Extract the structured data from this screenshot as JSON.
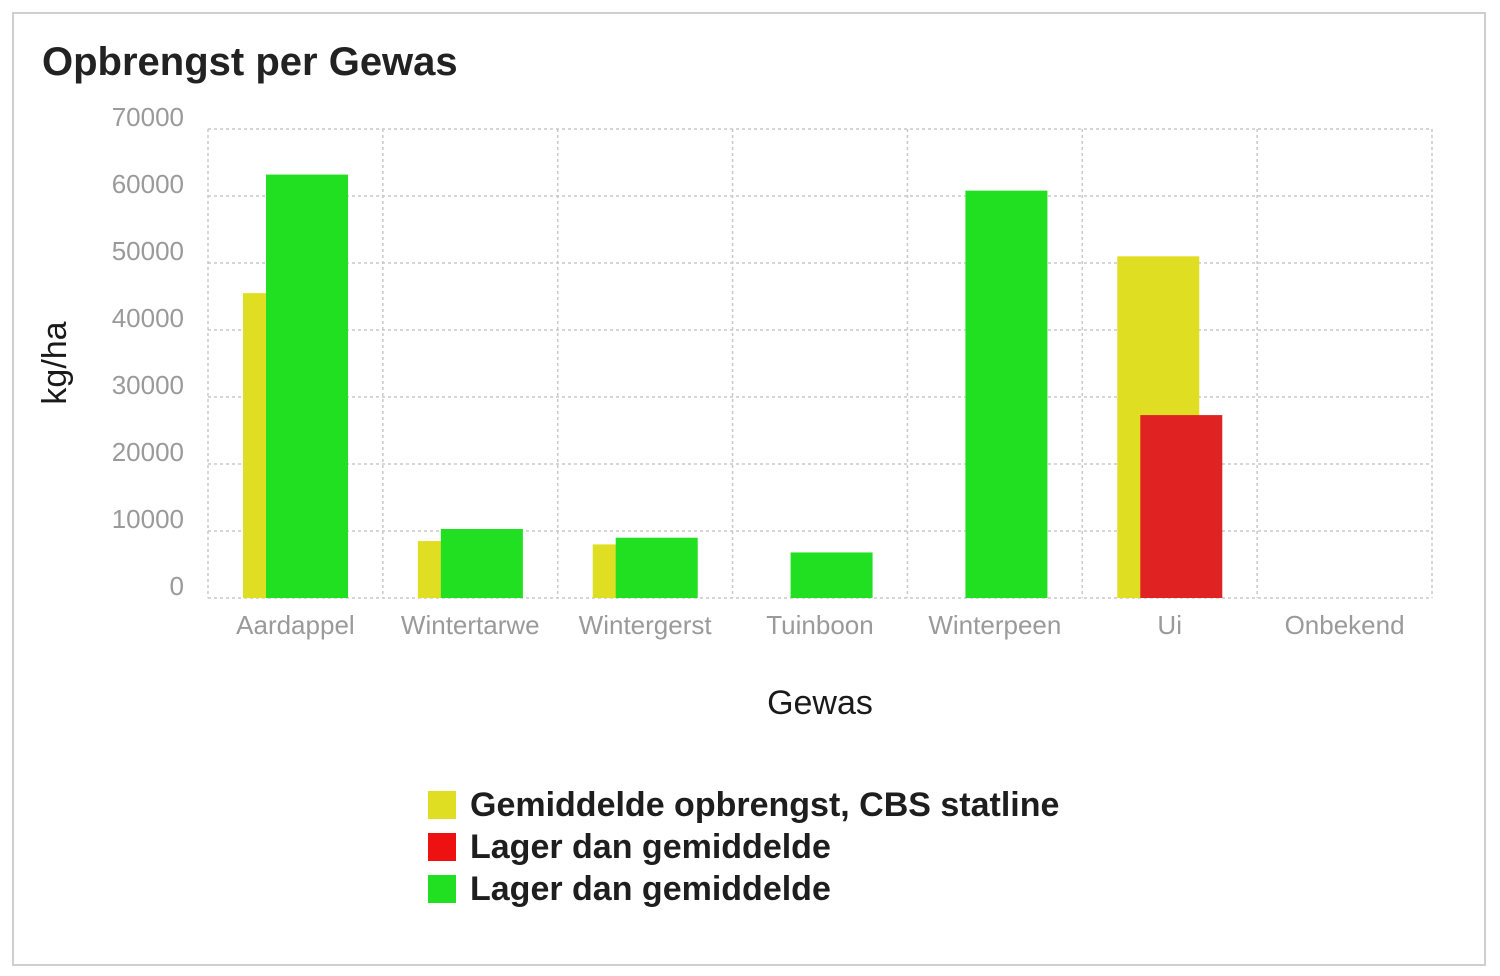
{
  "chart_data": {
    "type": "bar",
    "title": "Opbrengst per Gewas",
    "xlabel": "Gewas",
    "ylabel": "kg/ha",
    "categories": [
      "Aardappel",
      "Wintertarwe",
      "Wintergerst",
      "Tuinboon",
      "Winterpeen",
      "Ui",
      "Onbekend"
    ],
    "ylim": [
      0,
      70000
    ],
    "yticks": [
      0,
      10000,
      20000,
      30000,
      40000,
      50000,
      60000,
      70000
    ],
    "grid": true,
    "legend_position": "bottom",
    "average": {
      "name": "Gemiddelde opbrengst, CBS statline",
      "color": "#e0de22",
      "values": [
        45500,
        8500,
        8000,
        null,
        null,
        51000,
        null
      ]
    },
    "yield": {
      "values": [
        63200,
        10300,
        9000,
        6800,
        60800,
        27300,
        null
      ],
      "colors": [
        "#21e021",
        "#21e021",
        "#21e021",
        "#21e021",
        "#21e021",
        "#e02222",
        null
      ]
    },
    "legend": [
      {
        "label": "Gemiddelde opbrengst, CBS statline",
        "color": "#e0de22"
      },
      {
        "label": "Lager dan gemiddelde",
        "color": "#ee1111"
      },
      {
        "label": "Lager dan gemiddelde",
        "color": "#21e021"
      }
    ]
  }
}
